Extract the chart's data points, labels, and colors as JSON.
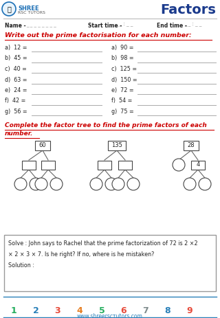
{
  "title": "Factors",
  "bg_color": "#ffffff",
  "title_color": "#1a3a8c",
  "section_color": "#cc0000",
  "body_color": "#222222",
  "header_label_color": "#222222",
  "header_fill_color": "#888888",
  "tree_box_color": "#444444",
  "line_color": "#666666",
  "logo_shree_color": "#1a6eb5",
  "logo_rsc_color": "#555555",
  "logo_circle_color": "#1a6eb5",
  "left_items": [
    "a)  12 =",
    "b)  45 =",
    "c)  40 =",
    "d)  63 =",
    "e)  24 =",
    "f)  42 =",
    "g)  56 ="
  ],
  "right_items": [
    "a)  90 =",
    "b)  98 =",
    "c)  125 =",
    "d)  150 =",
    "e)  72 =",
    "f)  54 =",
    "g)  75 ="
  ],
  "footer_numbers": [
    "1",
    "2",
    "3",
    "4",
    "5",
    "6",
    "7",
    "8",
    "9"
  ],
  "footer_colors": [
    "#27ae60",
    "#2980b9",
    "#e74c3c",
    "#e67e22",
    "#27ae60",
    "#e74c3c",
    "#7f8c8d",
    "#2980b9",
    "#e74c3c"
  ],
  "footer_url": "www.shreerscтutors.com",
  "solve_line1": "Solve : John says to Rachel that the prime factorization of 72 is 2 ×2",
  "solve_line2": "× 2 × 3 × 7. Is he right? If no, where is he mistaken?",
  "solve_line3": "Solution :"
}
